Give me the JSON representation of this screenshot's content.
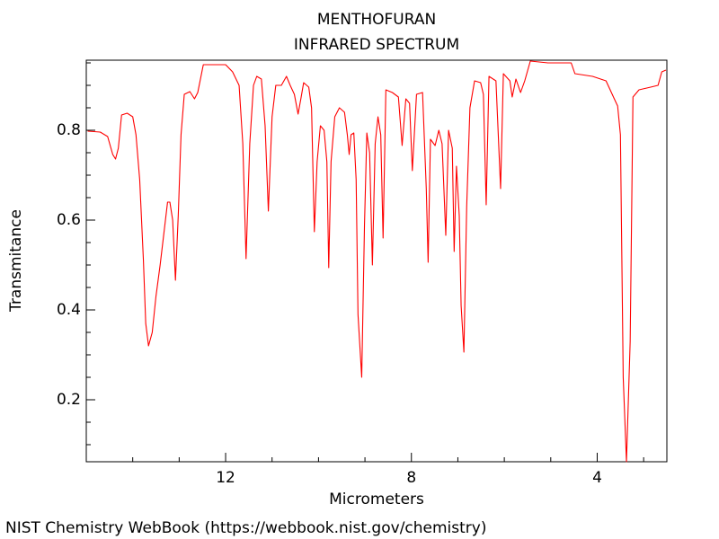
{
  "chart_data": {
    "type": "line",
    "title": "MENTHOFURAN",
    "subtitle": "INFRARED SPECTRUM",
    "x_label": "Micrometers",
    "y_label": "Transmitance",
    "footer": "NIST Chemistry WebBook (https://webbook.nist.gov/chemistry)",
    "color": "#ff0000",
    "xlim": [
      15,
      2.5
    ],
    "ylim": [
      0.062,
      0.956
    ],
    "xticks": [
      12,
      8,
      4
    ],
    "xticks_minor": [
      14,
      13,
      11,
      10,
      9,
      7,
      6,
      5,
      3
    ],
    "yticks": [
      0.2,
      0.4,
      0.6,
      0.8
    ],
    "yticks_minor": [
      0.1,
      0.15,
      0.25,
      0.3,
      0.35,
      0.45,
      0.5,
      0.55,
      0.65,
      0.7,
      0.75,
      0.85,
      0.9,
      0.95
    ],
    "x": [
      14.97,
      14.7,
      14.54,
      14.43,
      14.37,
      14.31,
      14.24,
      14.12,
      14.0,
      13.93,
      13.85,
      13.77,
      13.72,
      13.66,
      13.58,
      13.5,
      13.41,
      13.33,
      13.25,
      13.2,
      13.14,
      13.08,
      13.02,
      12.96,
      12.89,
      12.77,
      12.67,
      12.6,
      12.48,
      12.0,
      11.85,
      11.71,
      11.63,
      11.56,
      11.48,
      11.4,
      11.33,
      11.23,
      11.15,
      11.08,
      11.0,
      10.92,
      10.8,
      10.69,
      10.61,
      10.52,
      10.44,
      10.38,
      10.32,
      10.21,
      10.15,
      10.09,
      10.03,
      9.96,
      9.88,
      9.82,
      9.78,
      9.73,
      9.65,
      9.55,
      9.44,
      9.38,
      9.34,
      9.3,
      9.24,
      9.19,
      9.15,
      9.07,
      9.01,
      8.96,
      8.9,
      8.84,
      8.78,
      8.72,
      8.66,
      8.61,
      8.55,
      8.41,
      8.28,
      8.2,
      8.12,
      8.04,
      7.98,
      7.89,
      7.76,
      7.68,
      7.64,
      7.59,
      7.49,
      7.41,
      7.34,
      7.26,
      7.2,
      7.12,
      7.08,
      7.03,
      6.97,
      6.93,
      6.87,
      6.81,
      6.74,
      6.64,
      6.51,
      6.45,
      6.39,
      6.33,
      6.18,
      6.08,
      6.02,
      5.88,
      5.83,
      5.75,
      5.65,
      5.56,
      5.44,
      5.06,
      4.56,
      4.48,
      4.1,
      3.81,
      3.65,
      3.56,
      3.5,
      3.44,
      3.37,
      3.29,
      3.23,
      3.1,
      2.85,
      2.69,
      2.61,
      2.52
    ],
    "values": [
      0.798,
      0.796,
      0.786,
      0.746,
      0.736,
      0.76,
      0.834,
      0.838,
      0.83,
      0.79,
      0.69,
      0.51,
      0.37,
      0.32,
      0.35,
      0.43,
      0.5,
      0.57,
      0.64,
      0.64,
      0.6,
      0.466,
      0.61,
      0.79,
      0.88,
      0.886,
      0.87,
      0.884,
      0.946,
      0.946,
      0.93,
      0.9,
      0.77,
      0.514,
      0.77,
      0.9,
      0.92,
      0.914,
      0.81,
      0.62,
      0.83,
      0.9,
      0.9,
      0.92,
      0.9,
      0.88,
      0.836,
      0.87,
      0.906,
      0.896,
      0.85,
      0.574,
      0.73,
      0.81,
      0.8,
      0.73,
      0.494,
      0.73,
      0.83,
      0.85,
      0.84,
      0.79,
      0.746,
      0.79,
      0.794,
      0.69,
      0.39,
      0.25,
      0.59,
      0.794,
      0.75,
      0.5,
      0.77,
      0.83,
      0.79,
      0.56,
      0.89,
      0.884,
      0.874,
      0.766,
      0.87,
      0.86,
      0.71,
      0.88,
      0.884,
      0.67,
      0.506,
      0.78,
      0.766,
      0.8,
      0.77,
      0.566,
      0.8,
      0.76,
      0.53,
      0.72,
      0.61,
      0.41,
      0.306,
      0.63,
      0.85,
      0.91,
      0.906,
      0.88,
      0.634,
      0.92,
      0.91,
      0.67,
      0.926,
      0.91,
      0.874,
      0.914,
      0.884,
      0.91,
      0.954,
      0.95,
      0.95,
      0.926,
      0.92,
      0.91,
      0.874,
      0.854,
      0.79,
      0.25,
      0.062,
      0.33,
      0.874,
      0.89,
      0.896,
      0.9,
      0.93,
      0.934
    ]
  }
}
